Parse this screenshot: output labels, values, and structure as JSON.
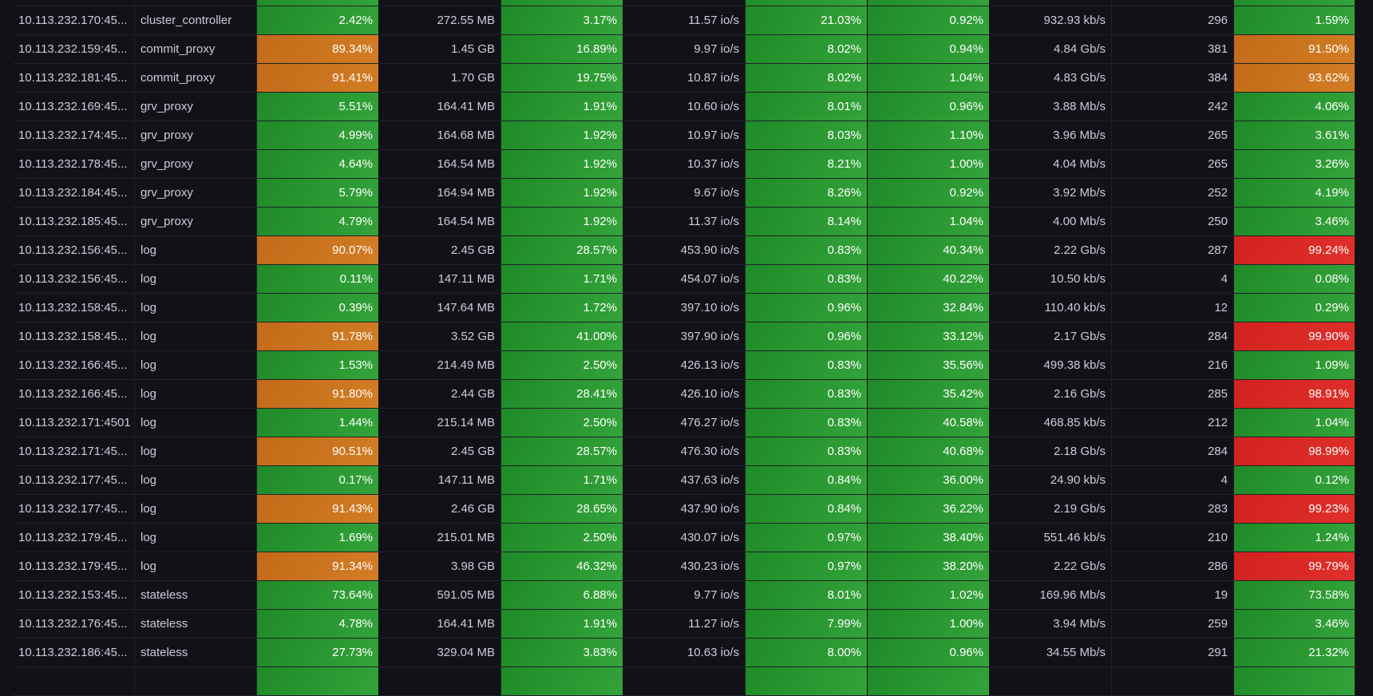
{
  "colors": {
    "green": "#2d9a33",
    "orange": "#c8741d",
    "red": "#d92825",
    "background": "#111217",
    "text": "#ccccdc"
  },
  "rows": [
    {
      "addr": "",
      "role": "",
      "cpu": "",
      "mem": "",
      "memp": "",
      "io": "",
      "c5": "",
      "c6": "",
      "net": "",
      "conns": "",
      "last": "",
      "st": [
        "g",
        "g",
        "g",
        "g"
      ]
    },
    {
      "addr": "10.113.232.170:45...",
      "role": "cluster_controller",
      "cpu": "2.42%",
      "mem": "272.55 MB",
      "memp": "3.17%",
      "io": "11.57 io/s",
      "c5": "21.03%",
      "c6": "0.92%",
      "net": "932.93 kb/s",
      "conns": "296",
      "last": "1.59%",
      "st": [
        "g",
        "g",
        "g",
        "g",
        "g"
      ]
    },
    {
      "addr": "10.113.232.159:45...",
      "role": "commit_proxy",
      "cpu": "89.34%",
      "mem": "1.45 GB",
      "memp": "16.89%",
      "io": "9.97 io/s",
      "c5": "8.02%",
      "c6": "0.94%",
      "net": "4.84 Gb/s",
      "conns": "381",
      "last": "91.50%",
      "st": [
        "o",
        "g",
        "g",
        "g",
        "o"
      ]
    },
    {
      "addr": "10.113.232.181:45...",
      "role": "commit_proxy",
      "cpu": "91.41%",
      "mem": "1.70 GB",
      "memp": "19.75%",
      "io": "10.87 io/s",
      "c5": "8.02%",
      "c6": "1.04%",
      "net": "4.83 Gb/s",
      "conns": "384",
      "last": "93.62%",
      "st": [
        "o",
        "g",
        "g",
        "g",
        "o"
      ]
    },
    {
      "addr": "10.113.232.169:45...",
      "role": "grv_proxy",
      "cpu": "5.51%",
      "mem": "164.41 MB",
      "memp": "1.91%",
      "io": "10.60 io/s",
      "c5": "8.01%",
      "c6": "0.96%",
      "net": "3.88 Mb/s",
      "conns": "242",
      "last": "4.06%",
      "st": [
        "g",
        "g",
        "g",
        "g",
        "g"
      ]
    },
    {
      "addr": "10.113.232.174:45...",
      "role": "grv_proxy",
      "cpu": "4.99%",
      "mem": "164.68 MB",
      "memp": "1.92%",
      "io": "10.97 io/s",
      "c5": "8.03%",
      "c6": "1.10%",
      "net": "3.96 Mb/s",
      "conns": "265",
      "last": "3.61%",
      "st": [
        "g",
        "g",
        "g",
        "g",
        "g"
      ]
    },
    {
      "addr": "10.113.232.178:45...",
      "role": "grv_proxy",
      "cpu": "4.64%",
      "mem": "164.54 MB",
      "memp": "1.92%",
      "io": "10.37 io/s",
      "c5": "8.21%",
      "c6": "1.00%",
      "net": "4.04 Mb/s",
      "conns": "265",
      "last": "3.26%",
      "st": [
        "g",
        "g",
        "g",
        "g",
        "g"
      ]
    },
    {
      "addr": "10.113.232.184:45...",
      "role": "grv_proxy",
      "cpu": "5.79%",
      "mem": "164.94 MB",
      "memp": "1.92%",
      "io": "9.67 io/s",
      "c5": "8.26%",
      "c6": "0.92%",
      "net": "3.92 Mb/s",
      "conns": "252",
      "last": "4.19%",
      "st": [
        "g",
        "g",
        "g",
        "g",
        "g"
      ]
    },
    {
      "addr": "10.113.232.185:45...",
      "role": "grv_proxy",
      "cpu": "4.79%",
      "mem": "164.54 MB",
      "memp": "1.92%",
      "io": "11.37 io/s",
      "c5": "8.14%",
      "c6": "1.04%",
      "net": "4.00 Mb/s",
      "conns": "250",
      "last": "3.46%",
      "st": [
        "g",
        "g",
        "g",
        "g",
        "g"
      ]
    },
    {
      "addr": "10.113.232.156:45...",
      "role": "log",
      "cpu": "90.07%",
      "mem": "2.45 GB",
      "memp": "28.57%",
      "io": "453.90 io/s",
      "c5": "0.83%",
      "c6": "40.34%",
      "net": "2.22 Gb/s",
      "conns": "287",
      "last": "99.24%",
      "st": [
        "o",
        "g",
        "g",
        "g",
        "r"
      ]
    },
    {
      "addr": "10.113.232.156:45...",
      "role": "log",
      "cpu": "0.11%",
      "mem": "147.11 MB",
      "memp": "1.71%",
      "io": "454.07 io/s",
      "c5": "0.83%",
      "c6": "40.22%",
      "net": "10.50 kb/s",
      "conns": "4",
      "last": "0.08%",
      "st": [
        "g",
        "g",
        "g",
        "g",
        "g"
      ]
    },
    {
      "addr": "10.113.232.158:45...",
      "role": "log",
      "cpu": "0.39%",
      "mem": "147.64 MB",
      "memp": "1.72%",
      "io": "397.10 io/s",
      "c5": "0.96%",
      "c6": "32.84%",
      "net": "110.40 kb/s",
      "conns": "12",
      "last": "0.29%",
      "st": [
        "g",
        "g",
        "g",
        "g",
        "g"
      ]
    },
    {
      "addr": "10.113.232.158:45...",
      "role": "log",
      "cpu": "91.78%",
      "mem": "3.52 GB",
      "memp": "41.00%",
      "io": "397.90 io/s",
      "c5": "0.96%",
      "c6": "33.12%",
      "net": "2.17 Gb/s",
      "conns": "284",
      "last": "99.90%",
      "st": [
        "o",
        "g",
        "g",
        "g",
        "r"
      ]
    },
    {
      "addr": "10.113.232.166:45...",
      "role": "log",
      "cpu": "1.53%",
      "mem": "214.49 MB",
      "memp": "2.50%",
      "io": "426.13 io/s",
      "c5": "0.83%",
      "c6": "35.56%",
      "net": "499.38 kb/s",
      "conns": "216",
      "last": "1.09%",
      "st": [
        "g",
        "g",
        "g",
        "g",
        "g"
      ]
    },
    {
      "addr": "10.113.232.166:45...",
      "role": "log",
      "cpu": "91.80%",
      "mem": "2.44 GB",
      "memp": "28.41%",
      "io": "426.10 io/s",
      "c5": "0.83%",
      "c6": "35.42%",
      "net": "2.16 Gb/s",
      "conns": "285",
      "last": "98.91%",
      "st": [
        "o",
        "g",
        "g",
        "g",
        "r"
      ]
    },
    {
      "addr": "10.113.232.171:4501",
      "role": "log",
      "cpu": "1.44%",
      "mem": "215.14 MB",
      "memp": "2.50%",
      "io": "476.27 io/s",
      "c5": "0.83%",
      "c6": "40.58%",
      "net": "468.85 kb/s",
      "conns": "212",
      "last": "1.04%",
      "st": [
        "g",
        "g",
        "g",
        "g",
        "g"
      ]
    },
    {
      "addr": "10.113.232.171:45...",
      "role": "log",
      "cpu": "90.51%",
      "mem": "2.45 GB",
      "memp": "28.57%",
      "io": "476.30 io/s",
      "c5": "0.83%",
      "c6": "40.68%",
      "net": "2.18 Gb/s",
      "conns": "284",
      "last": "98.99%",
      "st": [
        "o",
        "g",
        "g",
        "g",
        "r"
      ]
    },
    {
      "addr": "10.113.232.177:45...",
      "role": "log",
      "cpu": "0.17%",
      "mem": "147.11 MB",
      "memp": "1.71%",
      "io": "437.63 io/s",
      "c5": "0.84%",
      "c6": "36.00%",
      "net": "24.90 kb/s",
      "conns": "4",
      "last": "0.12%",
      "st": [
        "g",
        "g",
        "g",
        "g",
        "g"
      ]
    },
    {
      "addr": "10.113.232.177:45...",
      "role": "log",
      "cpu": "91.43%",
      "mem": "2.46 GB",
      "memp": "28.65%",
      "io": "437.90 io/s",
      "c5": "0.84%",
      "c6": "36.22%",
      "net": "2.19 Gb/s",
      "conns": "283",
      "last": "99.23%",
      "st": [
        "o",
        "g",
        "g",
        "g",
        "r"
      ]
    },
    {
      "addr": "10.113.232.179:45...",
      "role": "log",
      "cpu": "1.69%",
      "mem": "215.01 MB",
      "memp": "2.50%",
      "io": "430.07 io/s",
      "c5": "0.97%",
      "c6": "38.40%",
      "net": "551.46 kb/s",
      "conns": "210",
      "last": "1.24%",
      "st": [
        "g",
        "g",
        "g",
        "g",
        "g"
      ]
    },
    {
      "addr": "10.113.232.179:45...",
      "role": "log",
      "cpu": "91.34%",
      "mem": "3.98 GB",
      "memp": "46.32%",
      "io": "430.23 io/s",
      "c5": "0.97%",
      "c6": "38.20%",
      "net": "2.22 Gb/s",
      "conns": "286",
      "last": "99.79%",
      "st": [
        "o",
        "g",
        "g",
        "g",
        "r"
      ]
    },
    {
      "addr": "10.113.232.153:45...",
      "role": "stateless",
      "cpu": "73.64%",
      "mem": "591.05 MB",
      "memp": "6.88%",
      "io": "9.77 io/s",
      "c5": "8.01%",
      "c6": "1.02%",
      "net": "169.96 Mb/s",
      "conns": "19",
      "last": "73.58%",
      "st": [
        "g",
        "g",
        "g",
        "g",
        "g"
      ]
    },
    {
      "addr": "10.113.232.176:45...",
      "role": "stateless",
      "cpu": "4.78%",
      "mem": "164.41 MB",
      "memp": "1.91%",
      "io": "11.27 io/s",
      "c5": "7.99%",
      "c6": "1.00%",
      "net": "3.94 Mb/s",
      "conns": "259",
      "last": "3.46%",
      "st": [
        "g",
        "g",
        "g",
        "g",
        "g"
      ]
    },
    {
      "addr": "10.113.232.186:45...",
      "role": "stateless",
      "cpu": "27.73%",
      "mem": "329.04 MB",
      "memp": "3.83%",
      "io": "10.63 io/s",
      "c5": "8.00%",
      "c6": "0.96%",
      "net": "34.55 Mb/s",
      "conns": "291",
      "last": "21.32%",
      "st": [
        "g",
        "g",
        "g",
        "g",
        "g"
      ]
    },
    {
      "addr": "",
      "role": "",
      "cpu": "",
      "mem": "",
      "memp": "",
      "io": "",
      "c5": "",
      "c6": "",
      "net": "",
      "conns": "",
      "last": "",
      "st": [
        "g",
        "g",
        "g",
        "g",
        "g"
      ]
    }
  ]
}
